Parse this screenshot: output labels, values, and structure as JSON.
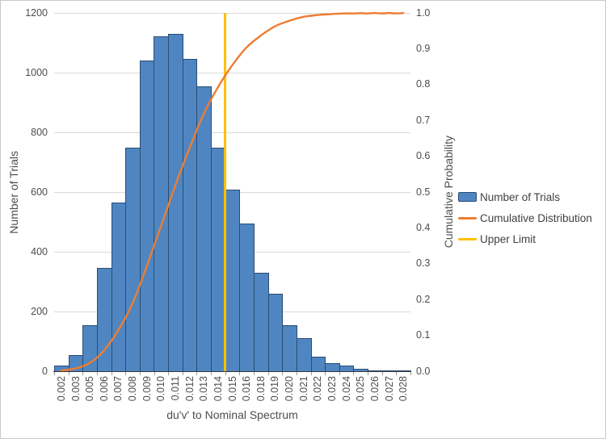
{
  "chart_data": {
    "type": "bar",
    "subtype": "histogram-with-cumulative-distribution-line",
    "title": "",
    "xlabel": "du'v' to Nominal Spectrum",
    "ylabel_left": "Number of Trials",
    "ylabel_right": "Cumulative Probability",
    "grid": "horizontal",
    "legend_position": "right",
    "categories": [
      "0.002",
      "0.003",
      "0.005",
      "0.006",
      "0.007",
      "0.008",
      "0.009",
      "0.010",
      "0.011",
      "0.012",
      "0.013",
      "0.014",
      "0.015",
      "0.016",
      "0.018",
      "0.019",
      "0.020",
      "0.021",
      "0.022",
      "0.023",
      "0.024",
      "0.025",
      "0.026",
      "0.027",
      "0.028"
    ],
    "series": [
      {
        "name": "Number of Trials",
        "type": "bar",
        "axis": "left",
        "values": [
          20,
          55,
          155,
          345,
          566,
          750,
          1040,
          1122,
          1130,
          1045,
          955,
          750,
          608,
          495,
          330,
          260,
          155,
          110,
          50,
          27,
          19,
          8,
          3,
          1,
          1
        ]
      },
      {
        "name": "Cumulative Distribution",
        "type": "line",
        "axis": "right",
        "values": [
          0.002,
          0.0075,
          0.023,
          0.0575,
          0.1141,
          0.1891,
          0.2931,
          0.4053,
          0.5183,
          0.6228,
          0.7183,
          0.7933,
          0.8541,
          0.9036,
          0.9366,
          0.9626,
          0.9781,
          0.9891,
          0.9941,
          0.9968,
          0.9987,
          0.9995,
          0.9998,
          0.9999,
          1.0
        ]
      },
      {
        "name": "Upper Limit",
        "type": "vertical-line",
        "between_categories": [
          "0.014",
          "0.015"
        ]
      }
    ],
    "y_left_axis": {
      "min": 0,
      "max": 1200,
      "step": 200,
      "tick_labels": [
        "0",
        "200",
        "400",
        "600",
        "800",
        "1000",
        "1200"
      ]
    },
    "y_right_axis": {
      "min": 0.0,
      "max": 1.0,
      "step": 0.1,
      "tick_labels": [
        "0.0",
        "0.1",
        "0.2",
        "0.3",
        "0.4",
        "0.5",
        "0.6",
        "0.7",
        "0.8",
        "0.9",
        "1.0"
      ]
    },
    "colors": {
      "bar_fill": "#4F86C2",
      "bar_border": "#2B4C71",
      "cumulative_line": "#ED7D31",
      "upper_limit_line": "#FFC000",
      "gridline": "#D9D9D9",
      "axis_line": "#3A3A3A",
      "text": "#4D4D4D"
    }
  },
  "legend": {
    "items": [
      {
        "label": "Number of Trials",
        "marker": "blue-bar-swatch"
      },
      {
        "label": "Cumulative Distribution",
        "marker": "orange-line"
      },
      {
        "label": "Upper Limit",
        "marker": "yellow-line"
      }
    ]
  },
  "titles": {
    "x_axis": "du'v' to Nominal Spectrum",
    "y_axis_left": "Number of Trials",
    "y_axis_right": "Cumulative Probability"
  }
}
